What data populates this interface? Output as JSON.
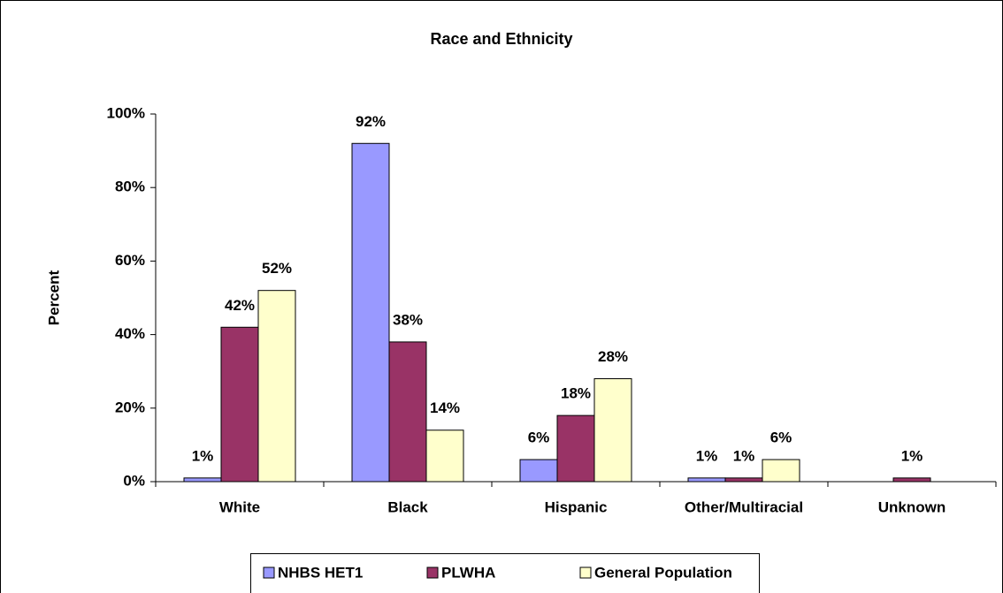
{
  "chart_data": {
    "type": "bar",
    "title": "Race and Ethnicity",
    "y_label": "Percent",
    "categories": [
      "White",
      "Black",
      "Hispanic",
      "Other/Multiracial",
      "Unknown"
    ],
    "series": [
      {
        "name": "NHBS HET1",
        "color": "#9999ff",
        "values": [
          1,
          92,
          6,
          1,
          null
        ],
        "value_labels": [
          "1%",
          "92%",
          "6%",
          "1%",
          null
        ]
      },
      {
        "name": "PLWHA",
        "color": "#993366",
        "values": [
          42,
          38,
          18,
          1,
          1
        ],
        "value_labels": [
          "42%",
          "38%",
          "18%",
          "1%",
          "1%"
        ]
      },
      {
        "name": "General Population",
        "color": "#ffffcc",
        "values": [
          52,
          14,
          28,
          6,
          null
        ],
        "value_labels": [
          "52%",
          "14%",
          "28%",
          "6%",
          null
        ]
      }
    ],
    "ylim": [
      0,
      100
    ],
    "yticks": [
      {
        "value": 0,
        "label": "0%"
      },
      {
        "value": 20,
        "label": "20%"
      },
      {
        "value": 40,
        "label": "40%"
      },
      {
        "value": 60,
        "label": "60%"
      },
      {
        "value": 80,
        "label": "80%"
      },
      {
        "value": 100,
        "label": "100%"
      }
    ],
    "grid": false,
    "legend": "bottom"
  }
}
